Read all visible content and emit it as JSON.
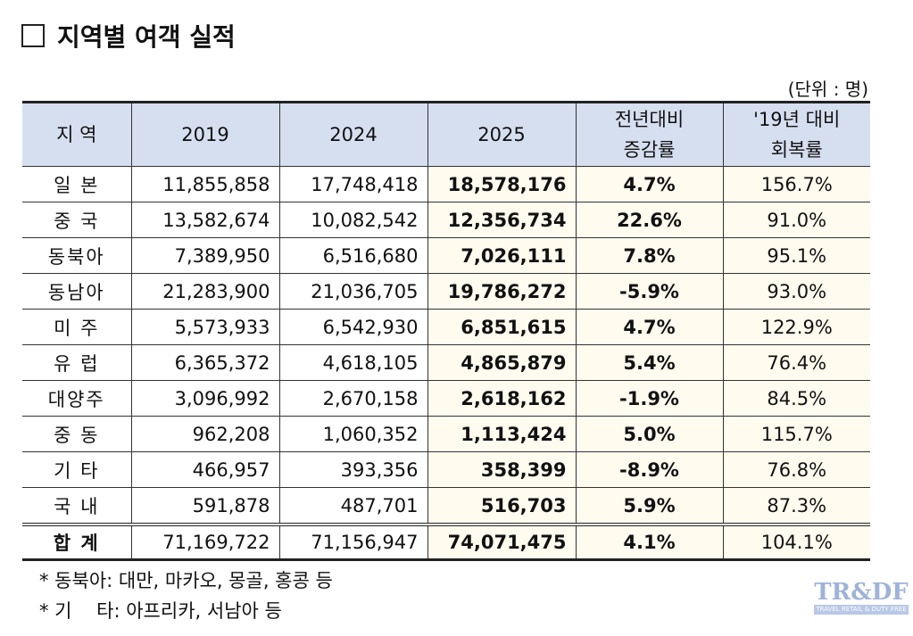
{
  "title": "지역별 여객 실적",
  "unit": "(단위 : 명)",
  "headers": [
    "지 역",
    "2019",
    "2024",
    "2025",
    "전년대비\n증감률",
    "'19년 대비\n회복률"
  ],
  "rows": [
    {
      "region": "일 본",
      "y2019": "11,855,858",
      "y2024": "17,748,418",
      "y2025": "18,578,176",
      "yoy": "4.7%",
      "recovery": "156.7%"
    },
    {
      "region": "중 국",
      "y2019": "13,582,674",
      "y2024": "10,082,542",
      "y2025": "12,356,734",
      "yoy": "22.6%",
      "recovery": "91.0%"
    },
    {
      "region": "동북아",
      "y2019": "7,389,950",
      "y2024": "6,516,680",
      "y2025": "7,026,111",
      "yoy": "7.8%",
      "recovery": "95.1%"
    },
    {
      "region": "동남아",
      "y2019": "21,283,900",
      "y2024": "21,036,705",
      "y2025": "19,786,272",
      "yoy": "-5.9%",
      "recovery": "93.0%"
    },
    {
      "region": "미 주",
      "y2019": "5,573,933",
      "y2024": "6,542,930",
      "y2025": "6,851,615",
      "yoy": "4.7%",
      "recovery": "122.9%"
    },
    {
      "region": "유 럽",
      "y2019": "6,365,372",
      "y2024": "4,618,105",
      "y2025": "4,865,879",
      "yoy": "5.4%",
      "recovery": "76.4%"
    },
    {
      "region": "대양주",
      "y2019": "3,096,992",
      "y2024": "2,670,158",
      "y2025": "2,618,162",
      "yoy": "-1.9%",
      "recovery": "84.5%"
    },
    {
      "region": "중 동",
      "y2019": "962,208",
      "y2024": "1,060,352",
      "y2025": "1,113,424",
      "yoy": "5.0%",
      "recovery": "115.7%"
    },
    {
      "region": "기 타",
      "y2019": "466,957",
      "y2024": "393,356",
      "y2025": "358,399",
      "yoy": "-8.9%",
      "recovery": "76.8%"
    },
    {
      "region": "국 내",
      "y2019": "591,878",
      "y2024": "487,701",
      "y2025": "516,703",
      "yoy": "5.9%",
      "recovery": "87.3%"
    }
  ],
  "total": {
    "region": "합 계",
    "y2019": "71,169,722",
    "y2024": "71,156,947",
    "y2025": "74,071,475",
    "yoy": "4.1%",
    "recovery": "104.1%"
  },
  "notes": [
    "* 동북아: 대만, 마카오, 몽골, 홍콩 등",
    "* 기　 타: 아프리카, 서남아 등"
  ],
  "logo": {
    "main": "TR&DF",
    "sub": "TRAVEL RETAIL & DUTY FREE"
  }
}
